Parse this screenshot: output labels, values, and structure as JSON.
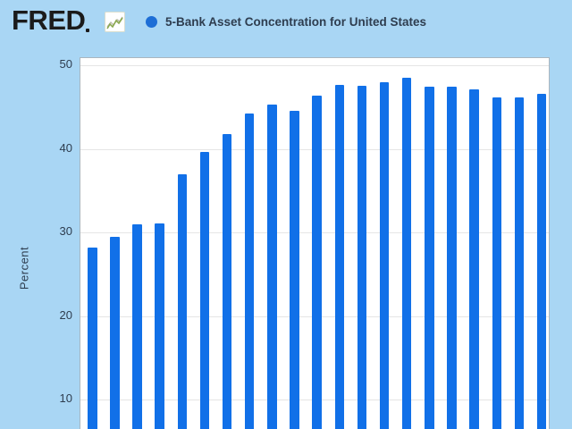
{
  "header": {
    "logo_text": "FRED",
    "legend": {
      "label": "5-Bank Asset Concentration for United States"
    }
  },
  "y_axis": {
    "label": "Percent",
    "ticks": [
      50,
      40,
      30,
      20,
      10
    ]
  },
  "colors": {
    "page_bg": "#a9d6f4",
    "plot_bg": "#ffffff",
    "plot_border": "#aab6bf",
    "bar": "#1170e8",
    "legend_marker": "#1d6ed6",
    "gridline": "#e5e5e5",
    "text": "#2e3d4f",
    "logo": "#1b1b1b",
    "icon_line_green": "#8aa84f",
    "icon_line_gray": "#b9b9a8"
  },
  "chart_data": {
    "type": "bar",
    "title": "5-Bank Asset Concentration for United States",
    "ylabel": "Percent",
    "yticks": [
      10,
      20,
      30,
      40,
      50
    ],
    "ylim_visible": [
      6.4,
      50.9
    ],
    "grid": true,
    "legend_position": "top",
    "x_axis_labels_visible": false,
    "values": [
      28.2,
      29.5,
      31.0,
      31.1,
      37.0,
      39.6,
      41.8,
      44.2,
      45.3,
      44.5,
      46.4,
      47.6,
      47.5,
      48.0,
      48.5,
      47.4,
      47.4,
      47.1,
      46.1,
      46.1,
      46.6
    ]
  }
}
